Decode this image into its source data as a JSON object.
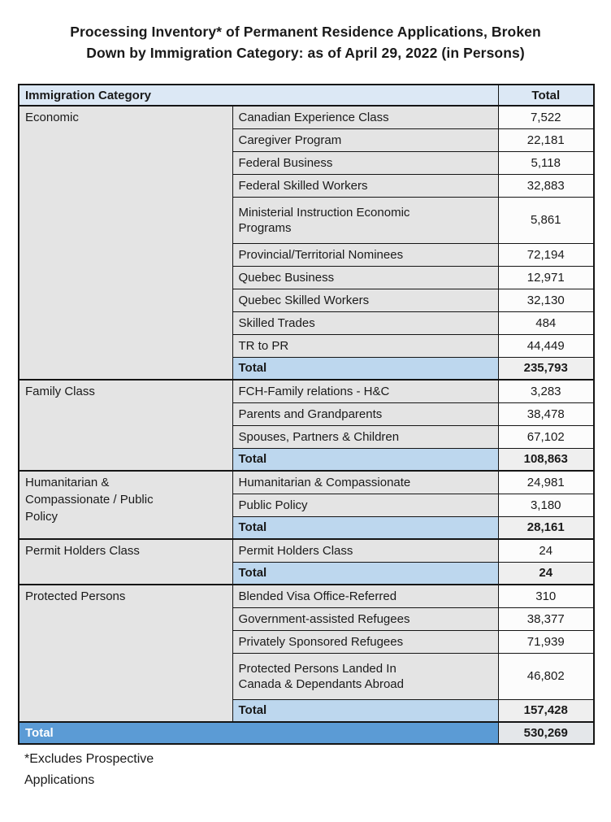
{
  "title": {
    "line1": "Processing Inventory* of Permanent Residence Applications, Broken",
    "line2": "Down by Immigration Category: as of April 29, 2022 (in Persons)"
  },
  "table": {
    "header": {
      "category": "Immigration Category",
      "total": "Total"
    },
    "sections": [
      {
        "category": "Economic",
        "rows": [
          {
            "label": "Canadian Experience Class",
            "value": "7,522"
          },
          {
            "label": "Caregiver Program",
            "value": "22,181"
          },
          {
            "label": "Federal Business",
            "value": "5,118"
          },
          {
            "label": "Federal Skilled Workers",
            "value": "32,883"
          },
          {
            "label": "Ministerial Instruction Economic Programs",
            "value": "5,861"
          },
          {
            "label": "Provincial/Territorial Nominees",
            "value": "72,194"
          },
          {
            "label": "Quebec Business",
            "value": "12,971"
          },
          {
            "label": "Quebec Skilled Workers",
            "value": "32,130"
          },
          {
            "label": "Skilled Trades",
            "value": "484"
          },
          {
            "label": "TR to PR",
            "value": "44,449"
          }
        ],
        "subtotal": {
          "label": "Total",
          "value": "235,793"
        }
      },
      {
        "category": "Family Class",
        "rows": [
          {
            "label": "FCH-Family relations - H&C",
            "value": "3,283"
          },
          {
            "label": "Parents and Grandparents",
            "value": "38,478"
          },
          {
            "label": "Spouses, Partners & Children",
            "value": "67,102"
          }
        ],
        "subtotal": {
          "label": "Total",
          "value": "108,863"
        }
      },
      {
        "category": "Humanitarian & Compassionate / Public Policy",
        "rows": [
          {
            "label": "Humanitarian & Compassionate",
            "value": "24,981"
          },
          {
            "label": "Public Policy",
            "value": "3,180"
          }
        ],
        "subtotal": {
          "label": "Total",
          "value": "28,161"
        }
      },
      {
        "category": "Permit Holders Class",
        "rows": [
          {
            "label": "Permit Holders Class",
            "value": "24"
          }
        ],
        "subtotal": {
          "label": "Total",
          "value": "24"
        }
      },
      {
        "category": "Protected Persons",
        "rows": [
          {
            "label": "Blended Visa Office-Referred",
            "value": "310"
          },
          {
            "label": "Government-assisted Refugees",
            "value": "38,377"
          },
          {
            "label": "Privately Sponsored Refugees",
            "value": "71,939"
          },
          {
            "label": "Protected Persons Landed In Canada & Dependants Abroad",
            "value": "46,802"
          }
        ],
        "subtotal": {
          "label": "Total",
          "value": "157,428"
        }
      }
    ],
    "grand_total": {
      "label": "Total",
      "value": "530,269"
    }
  },
  "footnote": "*Excludes Prospective Applications",
  "colors": {
    "header_bg": "#DCE8F5",
    "cell_grey": "#E4E4E4",
    "value_bg": "#FCFCFC",
    "subtotal_bg": "#BDD7EE",
    "subtotal_value_bg": "#EFEFEF",
    "grand_bg": "#5B9BD5",
    "grand_value_bg": "#E4E7EA"
  }
}
